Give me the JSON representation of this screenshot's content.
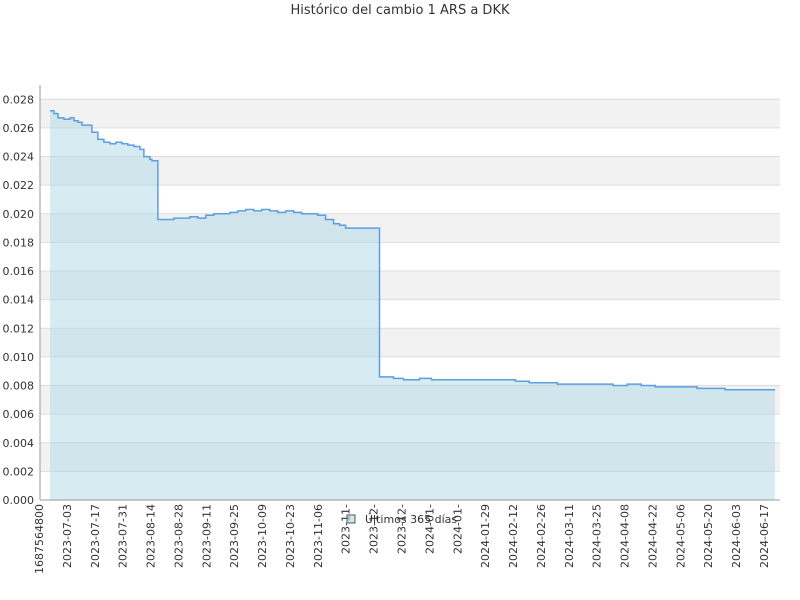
{
  "chart_data": {
    "type": "area",
    "title": "Histórico del cambio 1 ARS a DKK",
    "xlabel": "",
    "ylabel": "",
    "ylim": [
      0,
      0.029
    ],
    "grid": true,
    "legend_position": "bottom-center",
    "colors": {
      "line": "#5b9fe0",
      "fill": "#add8e6",
      "band": "#f2f2f2",
      "grid": "#dddddd",
      "axis": "#999999"
    },
    "x_tick_labels": [
      "1687564800",
      "2023-07-03",
      "2023-07-17",
      "2023-07-31",
      "2023-08-14",
      "2023-08-28",
      "2023-09-11",
      "2023-09-25",
      "2023-10-09",
      "2023-10-23",
      "2023-11-06",
      "2023-11-",
      "2023-12-",
      "2023-12-",
      "2024-01-",
      "2024-01-",
      "2024-01-29",
      "2024-02-12",
      "2024-02-26",
      "2024-03-11",
      "2024-03-25",
      "2024-04-08",
      "2024-04-22",
      "2024-05-06",
      "2024-05-20",
      "2024-06-03",
      "2024-06-17"
    ],
    "y_ticks": [
      "0.000",
      "0.002",
      "0.004",
      "0.006",
      "0.008",
      "0.010",
      "0.012",
      "0.014",
      "0.016",
      "0.018",
      "0.020",
      "0.022",
      "0.024",
      "0.026",
      "0.028"
    ],
    "series": [
      {
        "name": "Últimos 365 días",
        "x": [
          "2023-06-24",
          "2023-06-26",
          "2023-06-28",
          "2023-07-01",
          "2023-07-04",
          "2023-07-06",
          "2023-07-08",
          "2023-07-10",
          "2023-07-12",
          "2023-07-15",
          "2023-07-18",
          "2023-07-21",
          "2023-07-24",
          "2023-07-27",
          "2023-07-30",
          "2023-08-02",
          "2023-08-05",
          "2023-08-08",
          "2023-08-10",
          "2023-08-13",
          "2023-08-14",
          "2023-08-17",
          "2023-08-21",
          "2023-08-25",
          "2023-08-29",
          "2023-09-02",
          "2023-09-06",
          "2023-09-10",
          "2023-09-14",
          "2023-09-18",
          "2023-09-22",
          "2023-09-26",
          "2023-09-30",
          "2023-10-04",
          "2023-10-08",
          "2023-10-12",
          "2023-10-16",
          "2023-10-20",
          "2023-10-24",
          "2023-10-28",
          "2023-11-01",
          "2023-11-05",
          "2023-11-09",
          "2023-11-13",
          "2023-11-16",
          "2023-11-19",
          "2023-11-22",
          "2023-11-25",
          "2023-11-28",
          "2023-12-02",
          "2023-12-06",
          "2023-12-10",
          "2023-12-13",
          "2023-12-14",
          "2023-12-18",
          "2023-12-22",
          "2023-12-26",
          "2024-01-01",
          "2024-01-08",
          "2024-01-15",
          "2024-01-22",
          "2024-01-29",
          "2024-02-05",
          "2024-02-12",
          "2024-02-19",
          "2024-02-26",
          "2024-03-04",
          "2024-03-11",
          "2024-03-18",
          "2024-03-25",
          "2024-04-01",
          "2024-04-08",
          "2024-04-15",
          "2024-04-22",
          "2024-04-29",
          "2024-05-06",
          "2024-05-13",
          "2024-05-20",
          "2024-05-27",
          "2024-06-03",
          "2024-06-10",
          "2024-06-17",
          "2024-06-21"
        ],
        "values": [
          0.0272,
          0.027,
          0.0267,
          0.0266,
          0.0267,
          0.0265,
          0.0264,
          0.0262,
          0.0262,
          0.0257,
          0.0252,
          0.025,
          0.0249,
          0.025,
          0.0249,
          0.0248,
          0.0247,
          0.0245,
          0.024,
          0.0238,
          0.0237,
          0.0196,
          0.0196,
          0.0197,
          0.0197,
          0.0198,
          0.0197,
          0.0199,
          0.02,
          0.02,
          0.0201,
          0.0202,
          0.0203,
          0.0202,
          0.0203,
          0.0202,
          0.0201,
          0.0202,
          0.0201,
          0.02,
          0.02,
          0.0199,
          0.0196,
          0.0193,
          0.0192,
          0.019,
          0.019,
          0.019,
          0.019,
          0.019,
          0.0086,
          0.0086,
          0.0085,
          0.0085,
          0.0084,
          0.0084,
          0.0085,
          0.0084,
          0.0084,
          0.0084,
          0.0084,
          0.0084,
          0.0084,
          0.0083,
          0.0082,
          0.0082,
          0.0081,
          0.0081,
          0.0081,
          0.0081,
          0.008,
          0.0081,
          0.008,
          0.0079,
          0.0079,
          0.0079,
          0.0078,
          0.0078,
          0.0077,
          0.0077,
          0.0077,
          0.0077,
          0.0077
        ]
      }
    ]
  }
}
